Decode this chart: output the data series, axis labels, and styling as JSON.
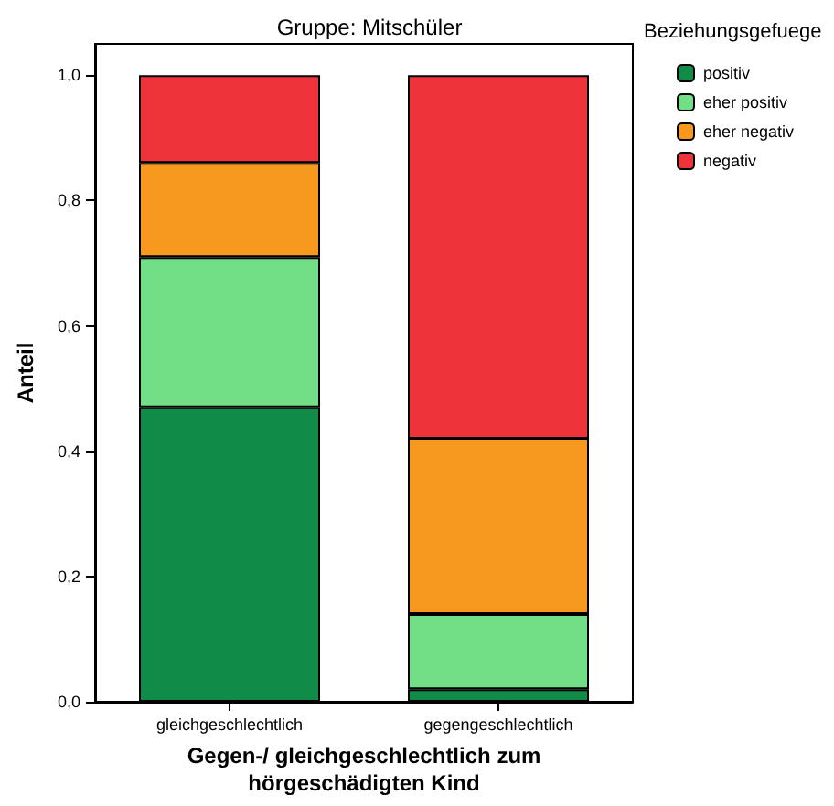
{
  "chart_data": {
    "type": "bar",
    "stacked": true,
    "title": "Gruppe: Mitschüler",
    "xlabel": "Gegen-/ gleichgeschlechtlich zum\nhörgeschädigten Kind",
    "ylabel": "Anteil",
    "legend_title": "Beziehungsgefuege",
    "legend": "right",
    "categories": [
      "gleichgeschlechtlich",
      "gegengeschlechtlich"
    ],
    "series": [
      {
        "name": "positiv",
        "color": "#108c48",
        "values": [
          0.47,
          0.02
        ]
      },
      {
        "name": "eher positiv",
        "color": "#72de86",
        "values": [
          0.24,
          0.12
        ]
      },
      {
        "name": "eher negativ",
        "color": "#f7981f",
        "values": [
          0.15,
          0.28
        ]
      },
      {
        "name": "negativ",
        "color": "#ef333b",
        "values": [
          0.14,
          0.58
        ]
      }
    ],
    "ylim": [
      0,
      1.05
    ],
    "yticks": [
      {
        "value": 0,
        "label": "0,0"
      },
      {
        "value": 0.2,
        "label": "0,2"
      },
      {
        "value": 0.4,
        "label": "0,4"
      },
      {
        "value": 0.6,
        "label": "0,6"
      },
      {
        "value": 0.8,
        "label": "0,8"
      },
      {
        "value": 1,
        "label": "1,0"
      }
    ],
    "grid": false
  }
}
